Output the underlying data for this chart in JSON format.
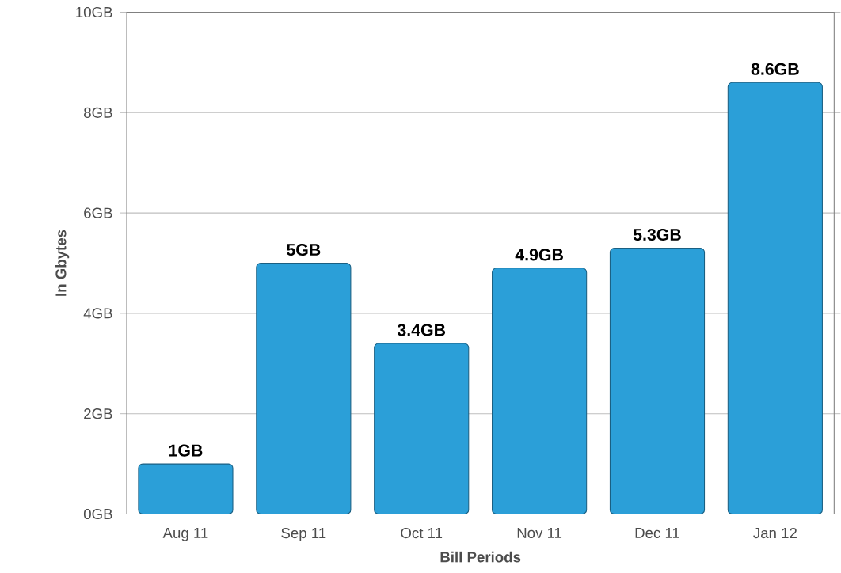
{
  "chart_data": {
    "type": "bar",
    "xlabel": "Bill Periods",
    "ylabel": "In Gbytes",
    "categories": [
      "Aug 11",
      "Sep 11",
      "Oct 11",
      "Nov 11",
      "Dec 11",
      "Jan 12"
    ],
    "values": [
      1,
      5,
      3.4,
      4.9,
      5.3,
      8.6
    ],
    "value_labels": [
      "1GB",
      "5GB",
      "3.4GB",
      "4.9GB",
      "5.3GB",
      "8.6GB"
    ],
    "color": "#2b9fd8",
    "ylim": [
      0,
      10
    ],
    "yticks": [
      {
        "value": 0,
        "label": "0GB"
      },
      {
        "value": 2,
        "label": "2GB"
      },
      {
        "value": 4,
        "label": "4GB"
      },
      {
        "value": 6,
        "label": "6GB"
      },
      {
        "value": 8,
        "label": "8GB"
      },
      {
        "value": 10,
        "label": "10GB"
      }
    ],
    "grid": "y"
  }
}
